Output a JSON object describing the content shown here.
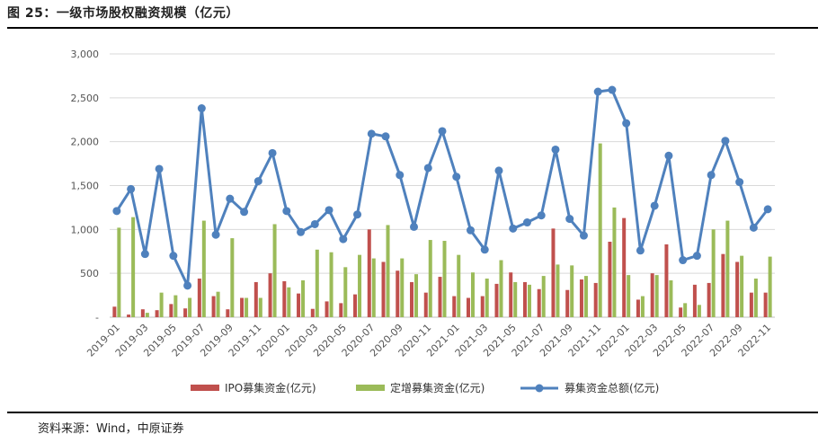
{
  "header": {
    "title": "图 25：一级市场股权融资规模（亿元）"
  },
  "footer": {
    "source": "资料来源：Wind，中原证券"
  },
  "colors": {
    "ipo": "#C0504D",
    "placement": "#9BBB59",
    "total": "#4F81BD",
    "grid": "#D9D9D9"
  },
  "chart_data": {
    "type": "bar",
    "title": "一级市场股权融资规模（亿元）",
    "ylim": [
      0,
      3000
    ],
    "yticks": [
      "-",
      "500",
      "1,000",
      "1,500",
      "2,000",
      "2,500",
      "3,000"
    ],
    "grid": true,
    "legend_position": "bottom",
    "x": [
      "2019-01",
      "2019-02",
      "2019-03",
      "2019-04",
      "2019-05",
      "2019-06",
      "2019-07",
      "2019-08",
      "2019-09",
      "2019-10",
      "2019-11",
      "2019-12",
      "2020-01",
      "2020-02",
      "2020-03",
      "2020-04",
      "2020-05",
      "2020-06",
      "2020-07",
      "2020-08",
      "2020-09",
      "2020-10",
      "2020-11",
      "2020-12",
      "2021-01",
      "2021-02",
      "2021-03",
      "2021-04",
      "2021-05",
      "2021-06",
      "2021-07",
      "2021-08",
      "2021-09",
      "2021-10",
      "2021-11",
      "2021-12",
      "2022-01",
      "2022-02",
      "2022-03",
      "2022-04",
      "2022-05",
      "2022-06",
      "2022-07",
      "2022-08",
      "2022-09",
      "2022-10",
      "2022-11"
    ],
    "xtick_labels": [
      "2019-01",
      "2019-03",
      "2019-05",
      "2019-07",
      "2019-09",
      "2019-11",
      "2020-01",
      "2020-03",
      "2020-05",
      "2020-07",
      "2020-09",
      "2020-11",
      "2021-01",
      "2021-03",
      "2021-05",
      "2021-07",
      "2021-09",
      "2021-11",
      "2022-01",
      "2022-03",
      "2022-05",
      "2022-07",
      "2022-09",
      "2022-11"
    ],
    "series": [
      {
        "name": "IPO募集资金(亿元)",
        "type": "bar",
        "values": [
          120,
          30,
          90,
          80,
          150,
          100,
          440,
          240,
          90,
          220,
          400,
          500,
          410,
          270,
          95,
          180,
          160,
          260,
          1000,
          630,
          530,
          400,
          280,
          460,
          240,
          220,
          240,
          380,
          510,
          400,
          320,
          1010,
          310,
          430,
          390,
          860,
          1130,
          200,
          500,
          830,
          110,
          370,
          390,
          720,
          630,
          280,
          280
        ]
      },
      {
        "name": "定增募集资金(亿元)",
        "type": "bar",
        "values": [
          1020,
          1140,
          50,
          280,
          250,
          220,
          1100,
          290,
          900,
          220,
          220,
          1060,
          340,
          420,
          770,
          740,
          570,
          710,
          670,
          1050,
          670,
          490,
          880,
          870,
          710,
          510,
          440,
          650,
          400,
          370,
          470,
          600,
          590,
          470,
          1980,
          1250,
          480,
          240,
          480,
          420,
          160,
          140,
          1000,
          1100,
          700,
          440,
          690
        ]
      },
      {
        "name": "募集资金总额(亿元)",
        "type": "line",
        "values": [
          1210,
          1460,
          720,
          1690,
          700,
          360,
          2380,
          940,
          1350,
          1200,
          1550,
          1870,
          1210,
          970,
          1060,
          1220,
          890,
          1170,
          2090,
          2060,
          1620,
          1030,
          1700,
          2120,
          1600,
          990,
          770,
          1670,
          1010,
          1080,
          1160,
          1910,
          1120,
          930,
          2570,
          2590,
          2210,
          760,
          1270,
          1840,
          650,
          700,
          1620,
          2010,
          1540,
          1020,
          1230
        ]
      }
    ]
  }
}
